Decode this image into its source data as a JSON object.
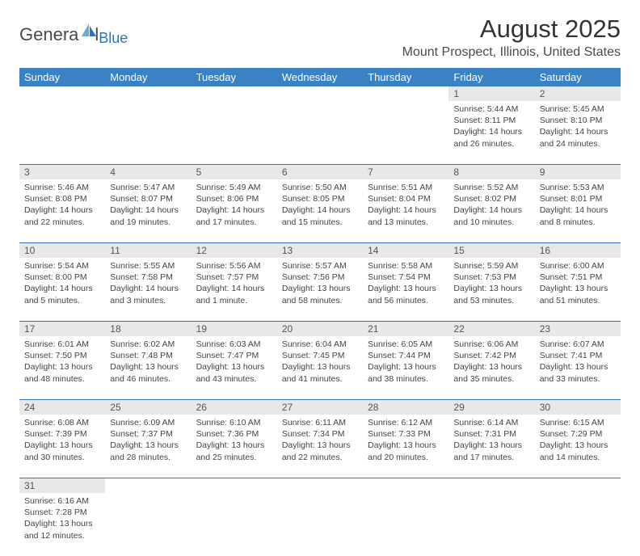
{
  "logo": {
    "main": "Genera",
    "l": "l",
    "blue": "Blue"
  },
  "title": "August 2025",
  "location": "Mount Prospect, Illinois, United States",
  "colors": {
    "header_bg": "#3b82c4",
    "header_text": "#ffffff",
    "daynum_bg": "#e8e8e8",
    "border": "#2f72b8",
    "logo_blue": "#2f72b8",
    "logo_gray": "#4a4a4a",
    "text": "#444444"
  },
  "day_headers": [
    "Sunday",
    "Monday",
    "Tuesday",
    "Wednesday",
    "Thursday",
    "Friday",
    "Saturday"
  ],
  "weeks": [
    [
      null,
      null,
      null,
      null,
      null,
      {
        "n": "1",
        "sr": "5:44 AM",
        "ss": "8:11 PM",
        "dl": "14 hours and 26 minutes."
      },
      {
        "n": "2",
        "sr": "5:45 AM",
        "ss": "8:10 PM",
        "dl": "14 hours and 24 minutes."
      }
    ],
    [
      {
        "n": "3",
        "sr": "5:46 AM",
        "ss": "8:08 PM",
        "dl": "14 hours and 22 minutes."
      },
      {
        "n": "4",
        "sr": "5:47 AM",
        "ss": "8:07 PM",
        "dl": "14 hours and 19 minutes."
      },
      {
        "n": "5",
        "sr": "5:49 AM",
        "ss": "8:06 PM",
        "dl": "14 hours and 17 minutes."
      },
      {
        "n": "6",
        "sr": "5:50 AM",
        "ss": "8:05 PM",
        "dl": "14 hours and 15 minutes."
      },
      {
        "n": "7",
        "sr": "5:51 AM",
        "ss": "8:04 PM",
        "dl": "14 hours and 13 minutes."
      },
      {
        "n": "8",
        "sr": "5:52 AM",
        "ss": "8:02 PM",
        "dl": "14 hours and 10 minutes."
      },
      {
        "n": "9",
        "sr": "5:53 AM",
        "ss": "8:01 PM",
        "dl": "14 hours and 8 minutes."
      }
    ],
    [
      {
        "n": "10",
        "sr": "5:54 AM",
        "ss": "8:00 PM",
        "dl": "14 hours and 5 minutes."
      },
      {
        "n": "11",
        "sr": "5:55 AM",
        "ss": "7:58 PM",
        "dl": "14 hours and 3 minutes."
      },
      {
        "n": "12",
        "sr": "5:56 AM",
        "ss": "7:57 PM",
        "dl": "14 hours and 1 minute."
      },
      {
        "n": "13",
        "sr": "5:57 AM",
        "ss": "7:56 PM",
        "dl": "13 hours and 58 minutes."
      },
      {
        "n": "14",
        "sr": "5:58 AM",
        "ss": "7:54 PM",
        "dl": "13 hours and 56 minutes."
      },
      {
        "n": "15",
        "sr": "5:59 AM",
        "ss": "7:53 PM",
        "dl": "13 hours and 53 minutes."
      },
      {
        "n": "16",
        "sr": "6:00 AM",
        "ss": "7:51 PM",
        "dl": "13 hours and 51 minutes."
      }
    ],
    [
      {
        "n": "17",
        "sr": "6:01 AM",
        "ss": "7:50 PM",
        "dl": "13 hours and 48 minutes."
      },
      {
        "n": "18",
        "sr": "6:02 AM",
        "ss": "7:48 PM",
        "dl": "13 hours and 46 minutes."
      },
      {
        "n": "19",
        "sr": "6:03 AM",
        "ss": "7:47 PM",
        "dl": "13 hours and 43 minutes."
      },
      {
        "n": "20",
        "sr": "6:04 AM",
        "ss": "7:45 PM",
        "dl": "13 hours and 41 minutes."
      },
      {
        "n": "21",
        "sr": "6:05 AM",
        "ss": "7:44 PM",
        "dl": "13 hours and 38 minutes."
      },
      {
        "n": "22",
        "sr": "6:06 AM",
        "ss": "7:42 PM",
        "dl": "13 hours and 35 minutes."
      },
      {
        "n": "23",
        "sr": "6:07 AM",
        "ss": "7:41 PM",
        "dl": "13 hours and 33 minutes."
      }
    ],
    [
      {
        "n": "24",
        "sr": "6:08 AM",
        "ss": "7:39 PM",
        "dl": "13 hours and 30 minutes."
      },
      {
        "n": "25",
        "sr": "6:09 AM",
        "ss": "7:37 PM",
        "dl": "13 hours and 28 minutes."
      },
      {
        "n": "26",
        "sr": "6:10 AM",
        "ss": "7:36 PM",
        "dl": "13 hours and 25 minutes."
      },
      {
        "n": "27",
        "sr": "6:11 AM",
        "ss": "7:34 PM",
        "dl": "13 hours and 22 minutes."
      },
      {
        "n": "28",
        "sr": "6:12 AM",
        "ss": "7:33 PM",
        "dl": "13 hours and 20 minutes."
      },
      {
        "n": "29",
        "sr": "6:14 AM",
        "ss": "7:31 PM",
        "dl": "13 hours and 17 minutes."
      },
      {
        "n": "30",
        "sr": "6:15 AM",
        "ss": "7:29 PM",
        "dl": "13 hours and 14 minutes."
      }
    ],
    [
      {
        "n": "31",
        "sr": "6:16 AM",
        "ss": "7:28 PM",
        "dl": "13 hours and 12 minutes."
      },
      null,
      null,
      null,
      null,
      null,
      null
    ]
  ],
  "labels": {
    "sunrise": "Sunrise:",
    "sunset": "Sunset:",
    "daylight": "Daylight:"
  }
}
